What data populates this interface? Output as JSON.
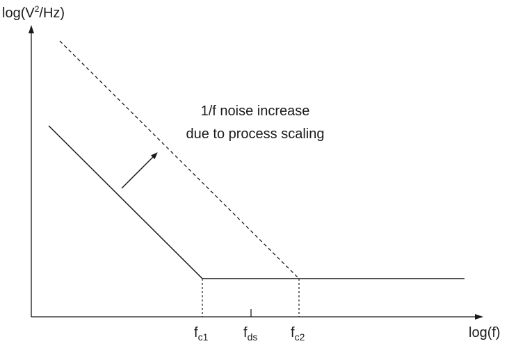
{
  "axes": {
    "y_label_prefix": "log(V",
    "y_label_sup": "2",
    "y_label_suffix": "/Hz)",
    "x_label": "log(f)"
  },
  "annotation": {
    "line1": "1/f noise increase",
    "line2": "due to process scaling"
  },
  "ticks": [
    {
      "base": "f",
      "sub": "c1"
    },
    {
      "base": "f",
      "sub": "ds"
    },
    {
      "base": "f",
      "sub": "c2"
    }
  ],
  "colors": {
    "stroke": "#1a1a1a",
    "background": "#ffffff"
  }
}
